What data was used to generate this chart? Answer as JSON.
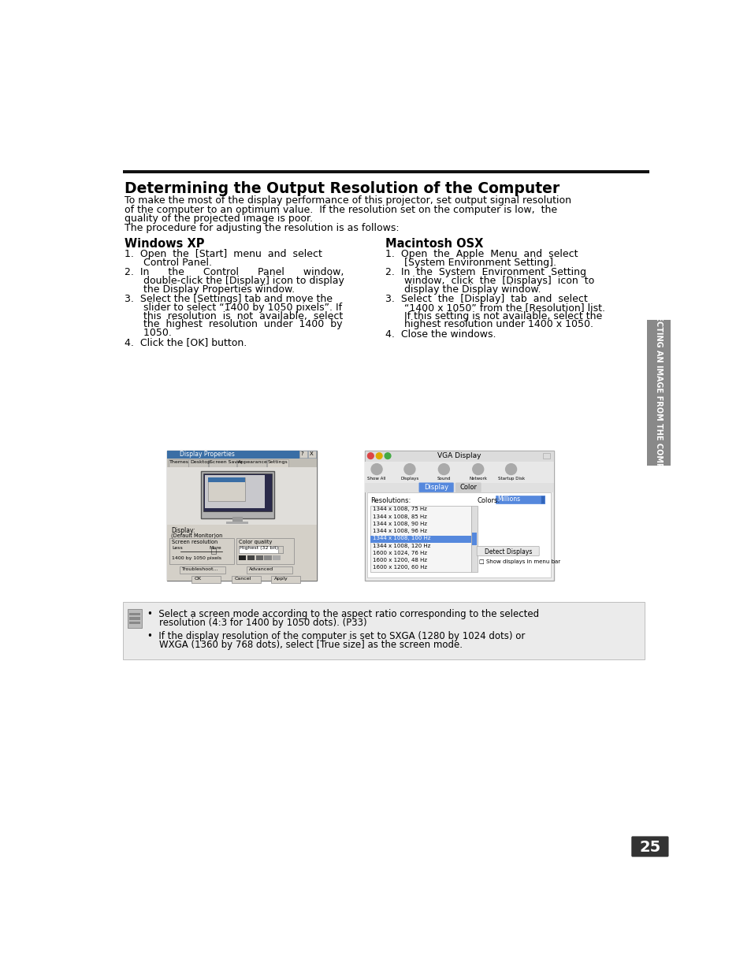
{
  "title": "Determining the Output Resolution of the Computer",
  "intro_lines": [
    "To make the most of the display performance of this projector, set output signal resolution",
    "of the computer to an optimum value.  If the resolution set on the computer is low,  the",
    "quality of the projected image is poor.",
    "The procedure for adjusting the resolution is as follows:"
  ],
  "windows_title": "Windows XP",
  "mac_title": "Macintosh OSX",
  "win_steps": [
    [
      "1.",
      "Open  the  [Start]  menu  and  select",
      "      Control Panel."
    ],
    [
      "2.",
      "In      the      Control      Panel      window,",
      "      double-click the [Display] icon to display",
      "      the Display Properties window."
    ],
    [
      "3.",
      "Select the [Settings] tab and move the",
      "      slider to select “1400 by 1050 pixels”. If",
      "      this  resolution  is  not  available,  select",
      "      the  highest  resolution  under  1400  by",
      "      1050."
    ],
    [
      "4.",
      "Click the [OK] button."
    ]
  ],
  "mac_steps": [
    [
      "1.",
      "Open  the  Apple  Menu  and  select",
      "      [System Environment Setting]."
    ],
    [
      "2.",
      "In  the  System  Environment  Setting",
      "      window,  click  the  [Displays]  icon  to",
      "      display the Display window."
    ],
    [
      "3.",
      "Select  the  [Display]  tab  and  select",
      "      “1400 x 1050” from the [Resolution] list.",
      "      If this setting is not available, select the",
      "      highest resolution under 1400 x 1050."
    ],
    [
      "4.",
      "Close the windows."
    ]
  ],
  "note_bullets": [
    "Select a screen mode according to the aspect ratio corresponding to the selected",
    "    resolution (4:3 for 1400 by 1050 dots). (P33)",
    "If the display resolution of the computer is set to SXGA (1280 by 1024 dots) or",
    "    WXGA (1360 by 768 dots), select [True size] as the screen mode."
  ],
  "sidebar_text": "PROJECTING AN IMAGE FROM THE COMPUTER",
  "page_number": "25",
  "bg_color": "#ffffff",
  "sidebar_color": "#898989",
  "note_bg_color": "#ebebeb",
  "line_color": "#111111",
  "title_fontsize": 13.5,
  "body_fontsize": 9.0,
  "heading_fontsize": 10.5,
  "resolutions": [
    "1344 x 1008, 75 Hz",
    "1344 x 1008, 85 Hz",
    "1344 x 1008, 90 Hz",
    "1344 x 1008, 96 Hz",
    "1344 x 1008, 100 Hz",
    "1344 x 1008, 120 Hz",
    "1600 x 1024, 76 Hz",
    "1600 x 1200, 48 Hz",
    "1600 x 1200, 60 Hz"
  ]
}
